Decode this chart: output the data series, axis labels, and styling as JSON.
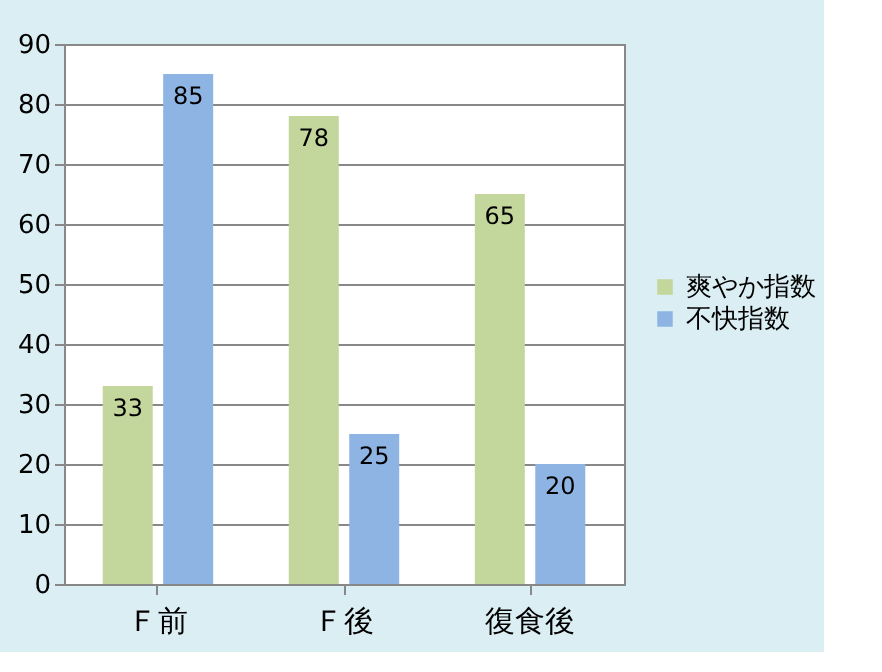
{
  "chart_data": {
    "type": "bar",
    "categories": [
      "Ｆ前",
      "Ｆ後",
      "復食後"
    ],
    "series": [
      {
        "name": "爽やか指数",
        "color": "#c3d69b",
        "values": [
          33,
          78,
          65
        ]
      },
      {
        "name": "不快指数",
        "color": "#8eb4e3",
        "values": [
          85,
          25,
          20
        ]
      }
    ],
    "ylim": [
      0,
      90
    ],
    "yticks": [
      0,
      10,
      20,
      30,
      40,
      50,
      60,
      70,
      80,
      90
    ],
    "grid": "y",
    "legend": "right",
    "data_labels": true
  }
}
